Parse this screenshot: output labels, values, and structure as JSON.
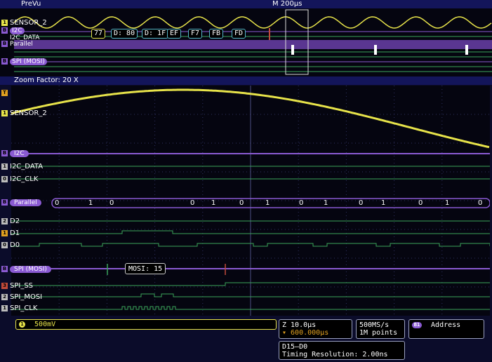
{
  "app": {
    "title": "PreVu",
    "timebase": "M 200µs",
    "zoom_factor": "Zoom Factor: 20 X"
  },
  "overview": {
    "labels": [
      "SENSOR_2",
      "I2C",
      "I2C_DATA",
      "Parallel",
      "SPI (MOSI)"
    ],
    "i2c_packets": [
      "77",
      "D: 80",
      "D: 1F",
      "EF",
      "F7",
      "FB",
      "FD"
    ]
  },
  "channels": {
    "sensor": "SENSOR_2",
    "i2c_bus": "I2C",
    "i2c_data": "I2C_DATA",
    "i2c_clk": "I2C_CLK",
    "parallel_bus": "Parallel",
    "d2": "D2",
    "d1": "D1",
    "d0": "D0",
    "spi_bus": "SPI (MOSI)",
    "spi_ss": "SPI_SS",
    "spi_mosi": "SPI_MOSI",
    "spi_clk": "SPI_CLK",
    "mosi_packet": "MOSI: 15",
    "parallel_values": [
      "0",
      "1",
      "0",
      "0",
      "1",
      "0",
      "1",
      "0",
      "1",
      "0",
      "1",
      "0",
      "1",
      "0"
    ]
  },
  "status": {
    "ch1_num": "1",
    "ch1_scale": "500mV",
    "zoom_time": "Z 10.0µs",
    "trig_pos": "▾ 600.000µs",
    "sample_rate": "500MS/s",
    "record_length": "1M points",
    "bus_badge": "B1",
    "bus_label": "Address",
    "digital_group": "D15–D0",
    "timing_resolution": "Timing Resolution: 2.00ns"
  },
  "colors": {
    "analog": "#e7e34a",
    "bus": "#8a5ad2",
    "digital": "#3aa55a",
    "spi": "#c24a3a"
  }
}
